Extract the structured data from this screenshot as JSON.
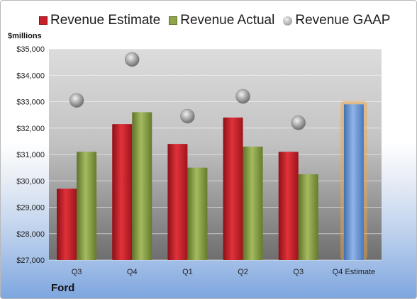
{
  "legend": {
    "estimate": "Revenue Estimate",
    "actual": "Revenue Actual",
    "gaap": "Revenue GAAP"
  },
  "units_label": "$millions",
  "company": "Ford",
  "colors": {
    "estimate": "#c8202a",
    "actual": "#8ea54b",
    "gaap": "#a9a9a9",
    "forecast": "#6f9bd6",
    "forecast_glow": "#f4a640"
  },
  "chart_data": {
    "type": "bar",
    "title": "",
    "xlabel": "",
    "ylabel": "$millions",
    "ylim": [
      27000,
      35000
    ],
    "yticks": [
      "$27,000",
      "$28,000",
      "$29,000",
      "$30,000",
      "$31,000",
      "$32,000",
      "$33,000",
      "$34,000",
      "$35,000"
    ],
    "ytick_values": [
      27000,
      28000,
      29000,
      30000,
      31000,
      32000,
      33000,
      34000,
      35000
    ],
    "grid": true,
    "legend_position": "top",
    "categories": [
      "Q3",
      "Q4",
      "Q1",
      "Q2",
      "Q3",
      "Q4 Estimate"
    ],
    "series": [
      {
        "name": "Revenue Estimate",
        "kind": "bar",
        "values": [
          29700,
          32150,
          31400,
          32400,
          31100,
          null
        ]
      },
      {
        "name": "Revenue Actual",
        "kind": "bar",
        "values": [
          31100,
          32600,
          30500,
          31300,
          30250,
          null
        ]
      },
      {
        "name": "Revenue GAAP",
        "kind": "marker",
        "values": [
          33050,
          34600,
          32450,
          33200,
          32200,
          null
        ]
      },
      {
        "name": "Q4 Estimate",
        "kind": "bar",
        "values": [
          null,
          null,
          null,
          null,
          null,
          32900
        ]
      }
    ]
  }
}
